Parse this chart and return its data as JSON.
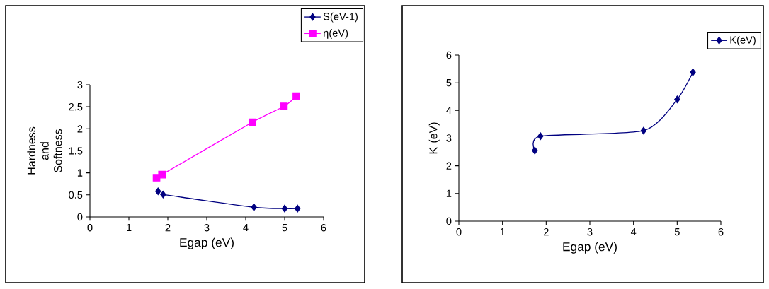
{
  "chart_data": [
    {
      "type": "line",
      "xlabel": "Egap (eV)",
      "ylabel": "Hardness and Softness",
      "xlim": [
        0,
        6
      ],
      "xticks": [
        0,
        1,
        2,
        3,
        4,
        5,
        6
      ],
      "ylim": [
        0,
        3
      ],
      "yticks": [
        0,
        0.5,
        1,
        1.5,
        2,
        2.5,
        3
      ],
      "legend": "top right",
      "grid": false,
      "series": [
        {
          "name": "S(eV-1)",
          "color": "#000080",
          "marker": "diamond",
          "x": [
            1.75,
            1.88,
            4.21,
            5.0,
            5.33
          ],
          "values": [
            0.58,
            0.51,
            0.22,
            0.19,
            0.19
          ]
        },
        {
          "name": "η(eV)",
          "color": "#ff00ff",
          "marker": "square",
          "x": [
            1.71,
            1.85,
            4.17,
            4.98,
            5.3
          ],
          "values": [
            0.89,
            0.96,
            2.15,
            2.51,
            2.74
          ]
        }
      ]
    },
    {
      "type": "line",
      "xlabel": "Egap (eV)",
      "ylabel": "K (eV)",
      "xlim": [
        0,
        6
      ],
      "xticks": [
        0,
        1,
        2,
        3,
        4,
        5,
        6
      ],
      "ylim": [
        0,
        6
      ],
      "yticks": [
        0,
        1,
        2,
        3,
        4,
        5,
        6
      ],
      "legend": "top right",
      "grid": false,
      "series": [
        {
          "name": "K(eV)",
          "color": "#000080",
          "marker": "diamond",
          "x": [
            1.74,
            1.87,
            4.23,
            5.0,
            5.36
          ],
          "values": [
            2.55,
            3.07,
            3.27,
            4.4,
            5.38
          ]
        }
      ]
    }
  ]
}
